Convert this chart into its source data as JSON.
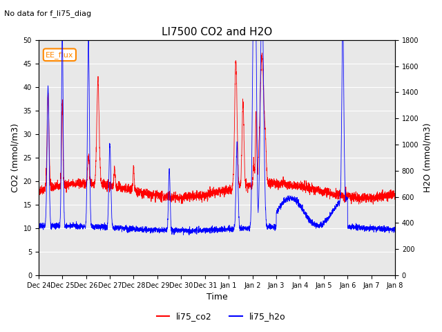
{
  "title": "LI7500 CO2 and H2O",
  "subtitle": "No data for f_li75_diag",
  "xlabel": "Time",
  "ylabel_left": "CO2 (mmol/m3)",
  "ylabel_right": "H2O (mmol/m3)",
  "ylim_left": [
    0,
    50
  ],
  "ylim_right": [
    0,
    1800
  ],
  "yticks_left": [
    0,
    5,
    10,
    15,
    20,
    25,
    30,
    35,
    40,
    45,
    50
  ],
  "yticks_right": [
    0,
    200,
    400,
    600,
    800,
    1000,
    1200,
    1400,
    1600,
    1800
  ],
  "xtick_labels": [
    "Dec 24",
    "Dec 25",
    "Dec 26",
    "Dec 27",
    "Dec 28",
    "Dec 29",
    "Dec 30",
    "Dec 31",
    "Jan 1",
    "Jan 2",
    "Jan 3",
    "Jan 4",
    "Jan 5",
    "Jan 6",
    "Jan 7",
    "Jan 8"
  ],
  "legend_box_label": "EE_flux",
  "legend_box_color": "#FF8800",
  "co2_color": "#FF0000",
  "h2o_color": "#0000FF",
  "background_color": "#E8E8E8",
  "grid_color": "#FFFFFF",
  "n_points": 3360
}
